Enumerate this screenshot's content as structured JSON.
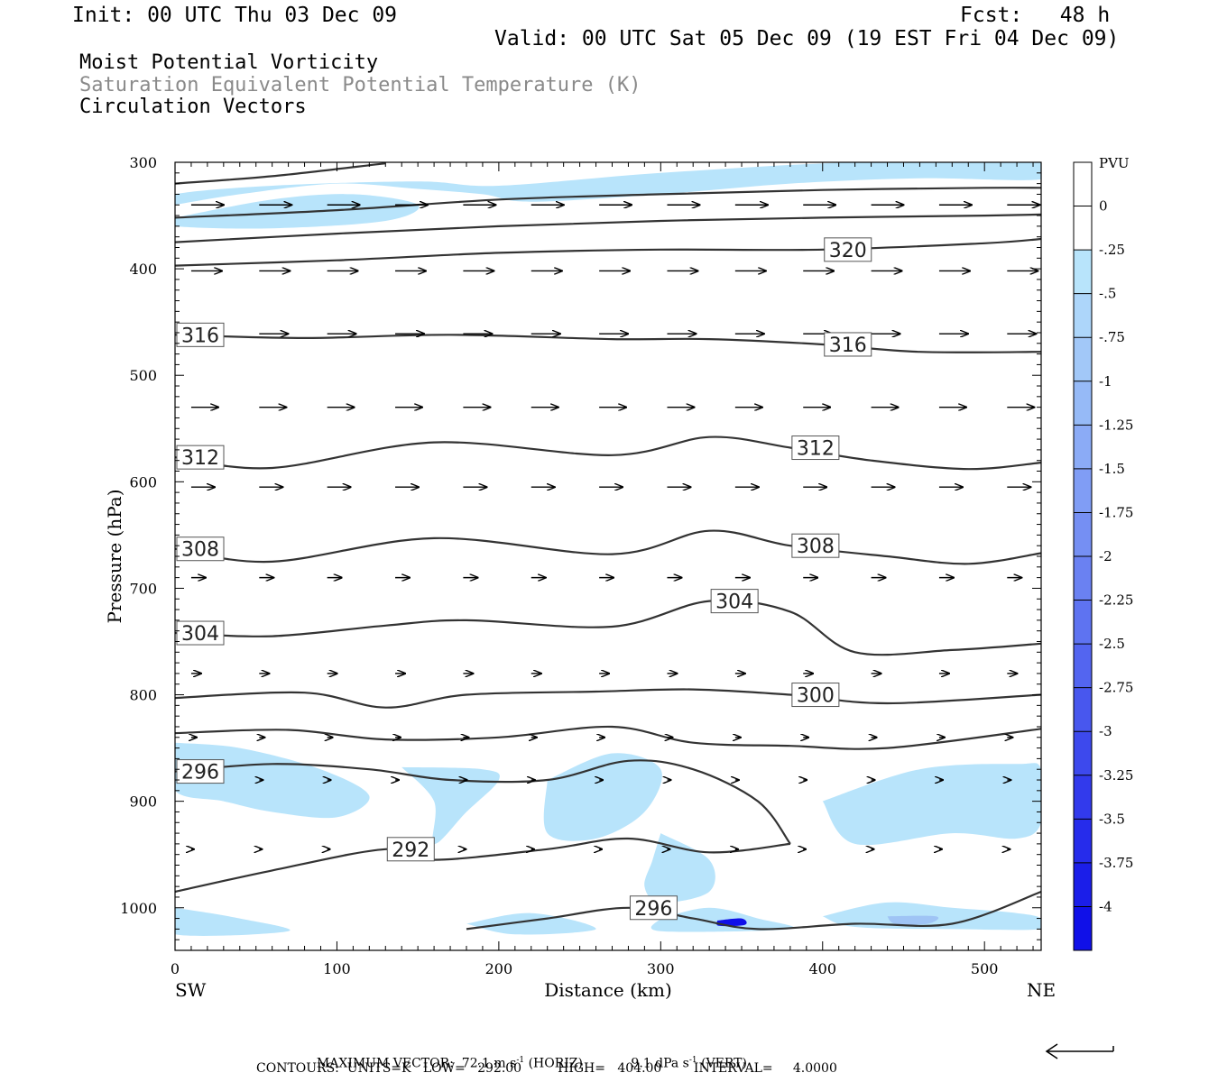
{
  "header": {
    "init": "Init: 00 UTC Thu 03 Dec 09",
    "fcst": "Fcst:   48 h",
    "valid": "Valid: 00 UTC Sat 05 Dec 09 (19 EST Fri 04 Dec 09)",
    "field1": "Moist Potential Vorticity",
    "field2": "Saturation Equivalent Potential Temperature (K)",
    "field3": "Circulation Vectors"
  },
  "footer": {
    "maxvec_label": "MAXIMUM VECTOR:",
    "maxvec_horiz": "72.1 m s",
    "maxvec_horiz_unit": "(HORIZ)",
    "maxvec_vert": "9.1 dPa s",
    "maxvec_vert_unit": "(VERT)",
    "sup": "-1",
    "contours": "CONTOURS:  UNITS=K   LOW=   292.00         HIGH=   404.00        INTERVAL=     4.0000"
  },
  "colors": {
    "mpv_light": "#b8e4fb",
    "mpv_mid": "#9fc4f5",
    "mpv_dark": "#1010e8",
    "contour": "#333333"
  },
  "chart_data": {
    "type": "contour-cross-section",
    "title": "Moist Potential Vorticity / Saturation Equivalent Potential Temperature (K) / Circulation Vectors",
    "xlabel": "Distance (km)",
    "ylabel": "Pressure (hPa)",
    "x_left_label": "SW",
    "x_right_label": "NE",
    "xlim": [
      0,
      535
    ],
    "ylim": [
      1040,
      300
    ],
    "xticks": [
      0,
      100,
      200,
      300,
      400,
      500
    ],
    "yticks": [
      300,
      400,
      500,
      600,
      700,
      800,
      900,
      1000
    ],
    "colorbar": {
      "label": "PVU",
      "ticks": [
        "0",
        "-.25",
        "-.5",
        "-.75",
        "-1",
        "-1.25",
        "-1.5",
        "-1.75",
        "-2",
        "-2.25",
        "-2.5",
        "-2.75",
        "-3",
        "-3.25",
        "-3.5",
        "-3.75",
        "-4"
      ]
    },
    "theta_e_contours": [
      {
        "level": 292,
        "label": "292",
        "points": [
          [
            0,
            985
          ],
          [
            60,
            965
          ],
          [
            130,
            945
          ],
          [
            160,
            955
          ],
          [
            230,
            945
          ],
          [
            280,
            935
          ],
          [
            330,
            948
          ],
          [
            380,
            940
          ]
        ]
      },
      {
        "level": 296,
        "label": "296",
        "points": [
          [
            180,
            1020
          ],
          [
            230,
            1010
          ],
          [
            280,
            1000
          ],
          [
            320,
            1010
          ],
          [
            360,
            1020
          ],
          [
            420,
            1015
          ],
          [
            480,
            1015
          ],
          [
            535,
            985
          ]
        ]
      },
      {
        "level": 296,
        "label": "296",
        "points": [
          [
            0,
            872
          ],
          [
            60,
            865
          ],
          [
            120,
            870
          ],
          [
            170,
            880
          ],
          [
            230,
            880
          ],
          [
            280,
            862
          ],
          [
            320,
            870
          ],
          [
            360,
            900
          ],
          [
            380,
            940
          ]
        ]
      },
      {
        "level": 300,
        "label": "300",
        "points": [
          [
            0,
            803
          ],
          [
            80,
            798
          ],
          [
            130,
            812
          ],
          [
            180,
            800
          ],
          [
            260,
            797
          ],
          [
            320,
            795
          ],
          [
            380,
            800
          ],
          [
            440,
            808
          ],
          [
            535,
            800
          ]
        ]
      },
      {
        "level": 300,
        "label": "300",
        "points": [
          [
            0,
            836
          ],
          [
            70,
            833
          ],
          [
            130,
            842
          ],
          [
            200,
            840
          ],
          [
            270,
            830
          ],
          [
            320,
            845
          ],
          [
            380,
            848
          ],
          [
            440,
            850
          ],
          [
            535,
            832
          ]
        ]
      },
      {
        "level": 304,
        "label": "304",
        "points": [
          [
            0,
            742
          ],
          [
            60,
            745
          ],
          [
            130,
            735
          ],
          [
            180,
            730
          ],
          [
            270,
            736
          ],
          [
            330,
            712
          ],
          [
            380,
            722
          ],
          [
            420,
            760
          ],
          [
            480,
            758
          ],
          [
            535,
            752
          ]
        ]
      },
      {
        "level": 308,
        "label": "308",
        "points": [
          [
            0,
            663
          ],
          [
            60,
            675
          ],
          [
            160,
            653
          ],
          [
            270,
            668
          ],
          [
            330,
            646
          ],
          [
            380,
            660
          ],
          [
            440,
            670
          ],
          [
            490,
            677
          ],
          [
            535,
            667
          ]
        ]
      },
      {
        "level": 312,
        "label": "312",
        "points": [
          [
            0,
            577
          ],
          [
            60,
            587
          ],
          [
            160,
            563
          ],
          [
            270,
            575
          ],
          [
            330,
            558
          ],
          [
            380,
            568
          ],
          [
            430,
            580
          ],
          [
            490,
            588
          ],
          [
            535,
            582
          ]
        ]
      },
      {
        "level": 316,
        "label": "316",
        "points": [
          [
            0,
            462
          ],
          [
            80,
            465
          ],
          [
            170,
            462
          ],
          [
            270,
            466
          ],
          [
            330,
            466
          ],
          [
            400,
            471
          ],
          [
            460,
            478
          ],
          [
            535,
            478
          ]
        ]
      },
      {
        "level": 320,
        "label": "320",
        "points": [
          [
            0,
            397
          ],
          [
            100,
            392
          ],
          [
            200,
            385
          ],
          [
            300,
            382
          ],
          [
            400,
            382
          ],
          [
            500,
            376
          ],
          [
            535,
            372
          ]
        ]
      },
      {
        "level": 324,
        "label": "",
        "points": [
          [
            0,
            375
          ],
          [
            100,
            367
          ],
          [
            200,
            360
          ],
          [
            300,
            355
          ],
          [
            400,
            352
          ],
          [
            500,
            350
          ],
          [
            535,
            349
          ]
        ]
      },
      {
        "level": 328,
        "label": "",
        "points": [
          [
            0,
            352
          ],
          [
            100,
            345
          ],
          [
            200,
            335
          ],
          [
            300,
            330
          ],
          [
            400,
            326
          ],
          [
            500,
            324
          ],
          [
            535,
            324
          ]
        ]
      },
      {
        "level": 332,
        "label": "",
        "points": [
          [
            0,
            320
          ],
          [
            60,
            313
          ],
          [
            130,
            301
          ]
        ]
      }
    ],
    "mpv_regions": [
      {
        "level": -0.25,
        "points": [
          [
            0,
            340
          ],
          [
            40,
            330
          ],
          [
            100,
            320
          ],
          [
            150,
            325
          ],
          [
            190,
            330
          ],
          [
            220,
            337
          ],
          [
            300,
            330
          ],
          [
            380,
            320
          ],
          [
            460,
            315
          ],
          [
            535,
            316
          ],
          [
            535,
            300
          ],
          [
            420,
            300
          ],
          [
            300,
            310
          ],
          [
            200,
            322
          ],
          [
            150,
            318
          ],
          [
            60,
            322
          ],
          [
            0,
            330
          ]
        ]
      },
      {
        "level": -0.5,
        "points": [
          [
            0,
            352
          ],
          [
            60,
            335
          ],
          [
            110,
            330
          ],
          [
            150,
            340
          ],
          [
            130,
            355
          ],
          [
            60,
            362
          ],
          [
            0,
            360
          ]
        ]
      },
      {
        "level": -0.25,
        "points": [
          [
            0,
            845
          ],
          [
            40,
            850
          ],
          [
            90,
            870
          ],
          [
            120,
            895
          ],
          [
            100,
            915
          ],
          [
            60,
            910
          ],
          [
            30,
            900
          ],
          [
            0,
            890
          ]
        ]
      },
      {
        "level": -0.25,
        "points": [
          [
            140,
            868
          ],
          [
            190,
            870
          ],
          [
            200,
            880
          ],
          [
            180,
            910
          ],
          [
            160,
            940
          ],
          [
            160,
            900
          ]
        ]
      },
      {
        "level": -0.25,
        "points": [
          [
            230,
            880
          ],
          [
            270,
            855
          ],
          [
            300,
            870
          ],
          [
            290,
            910
          ],
          [
            260,
            935
          ],
          [
            230,
            930
          ]
        ]
      },
      {
        "level": -0.25,
        "points": [
          [
            400,
            900
          ],
          [
            460,
            870
          ],
          [
            520,
            865
          ],
          [
            535,
            870
          ],
          [
            535,
            920
          ],
          [
            520,
            935
          ],
          [
            480,
            930
          ],
          [
            420,
            940
          ]
        ]
      },
      {
        "level": -0.25,
        "points": [
          [
            300,
            930
          ],
          [
            330,
            955
          ],
          [
            330,
            985
          ],
          [
            300,
            995
          ],
          [
            290,
            980
          ],
          [
            295,
            955
          ]
        ]
      },
      {
        "level": -0.25,
        "points": [
          [
            0,
            1000
          ],
          [
            40,
            1010
          ],
          [
            70,
            1022
          ],
          [
            0,
            1025
          ]
        ]
      },
      {
        "level": -0.25,
        "points": [
          [
            180,
            1015
          ],
          [
            220,
            1005
          ],
          [
            260,
            1020
          ],
          [
            210,
            1025
          ]
        ]
      },
      {
        "level": -0.25,
        "points": [
          [
            300,
            1010
          ],
          [
            330,
            1000
          ],
          [
            360,
            1010
          ],
          [
            380,
            1020
          ],
          [
            300,
            1022
          ]
        ]
      },
      {
        "level": -0.25,
        "points": [
          [
            400,
            1008
          ],
          [
            440,
            995
          ],
          [
            480,
            1000
          ],
          [
            520,
            1005
          ],
          [
            535,
            1010
          ],
          [
            535,
            1020
          ],
          [
            480,
            1020
          ],
          [
            420,
            1018
          ]
        ]
      },
      {
        "level": -4,
        "points": [
          [
            335,
            1012
          ],
          [
            350,
            1010
          ],
          [
            352,
            1016
          ],
          [
            336,
            1017
          ]
        ]
      },
      {
        "level": -1.25,
        "points": [
          [
            440,
            1008
          ],
          [
            470,
            1008
          ],
          [
            465,
            1015
          ],
          [
            445,
            1015
          ]
        ]
      }
    ],
    "vectors_rows": [
      {
        "p": 340,
        "u": 36
      },
      {
        "p": 402,
        "u": 34
      },
      {
        "p": 461,
        "u": 32
      },
      {
        "p": 530,
        "u": 30
      },
      {
        "p": 605,
        "u": 26
      },
      {
        "p": 690,
        "u": 16
      },
      {
        "p": 780,
        "u": 11
      },
      {
        "p": 840,
        "u": 6
      },
      {
        "p": 880,
        "u": 4
      },
      {
        "p": 945,
        "u": 3
      }
    ],
    "vector_x": [
      10,
      52,
      94,
      136,
      178,
      220,
      262,
      304,
      346,
      388,
      430,
      472,
      514
    ]
  }
}
